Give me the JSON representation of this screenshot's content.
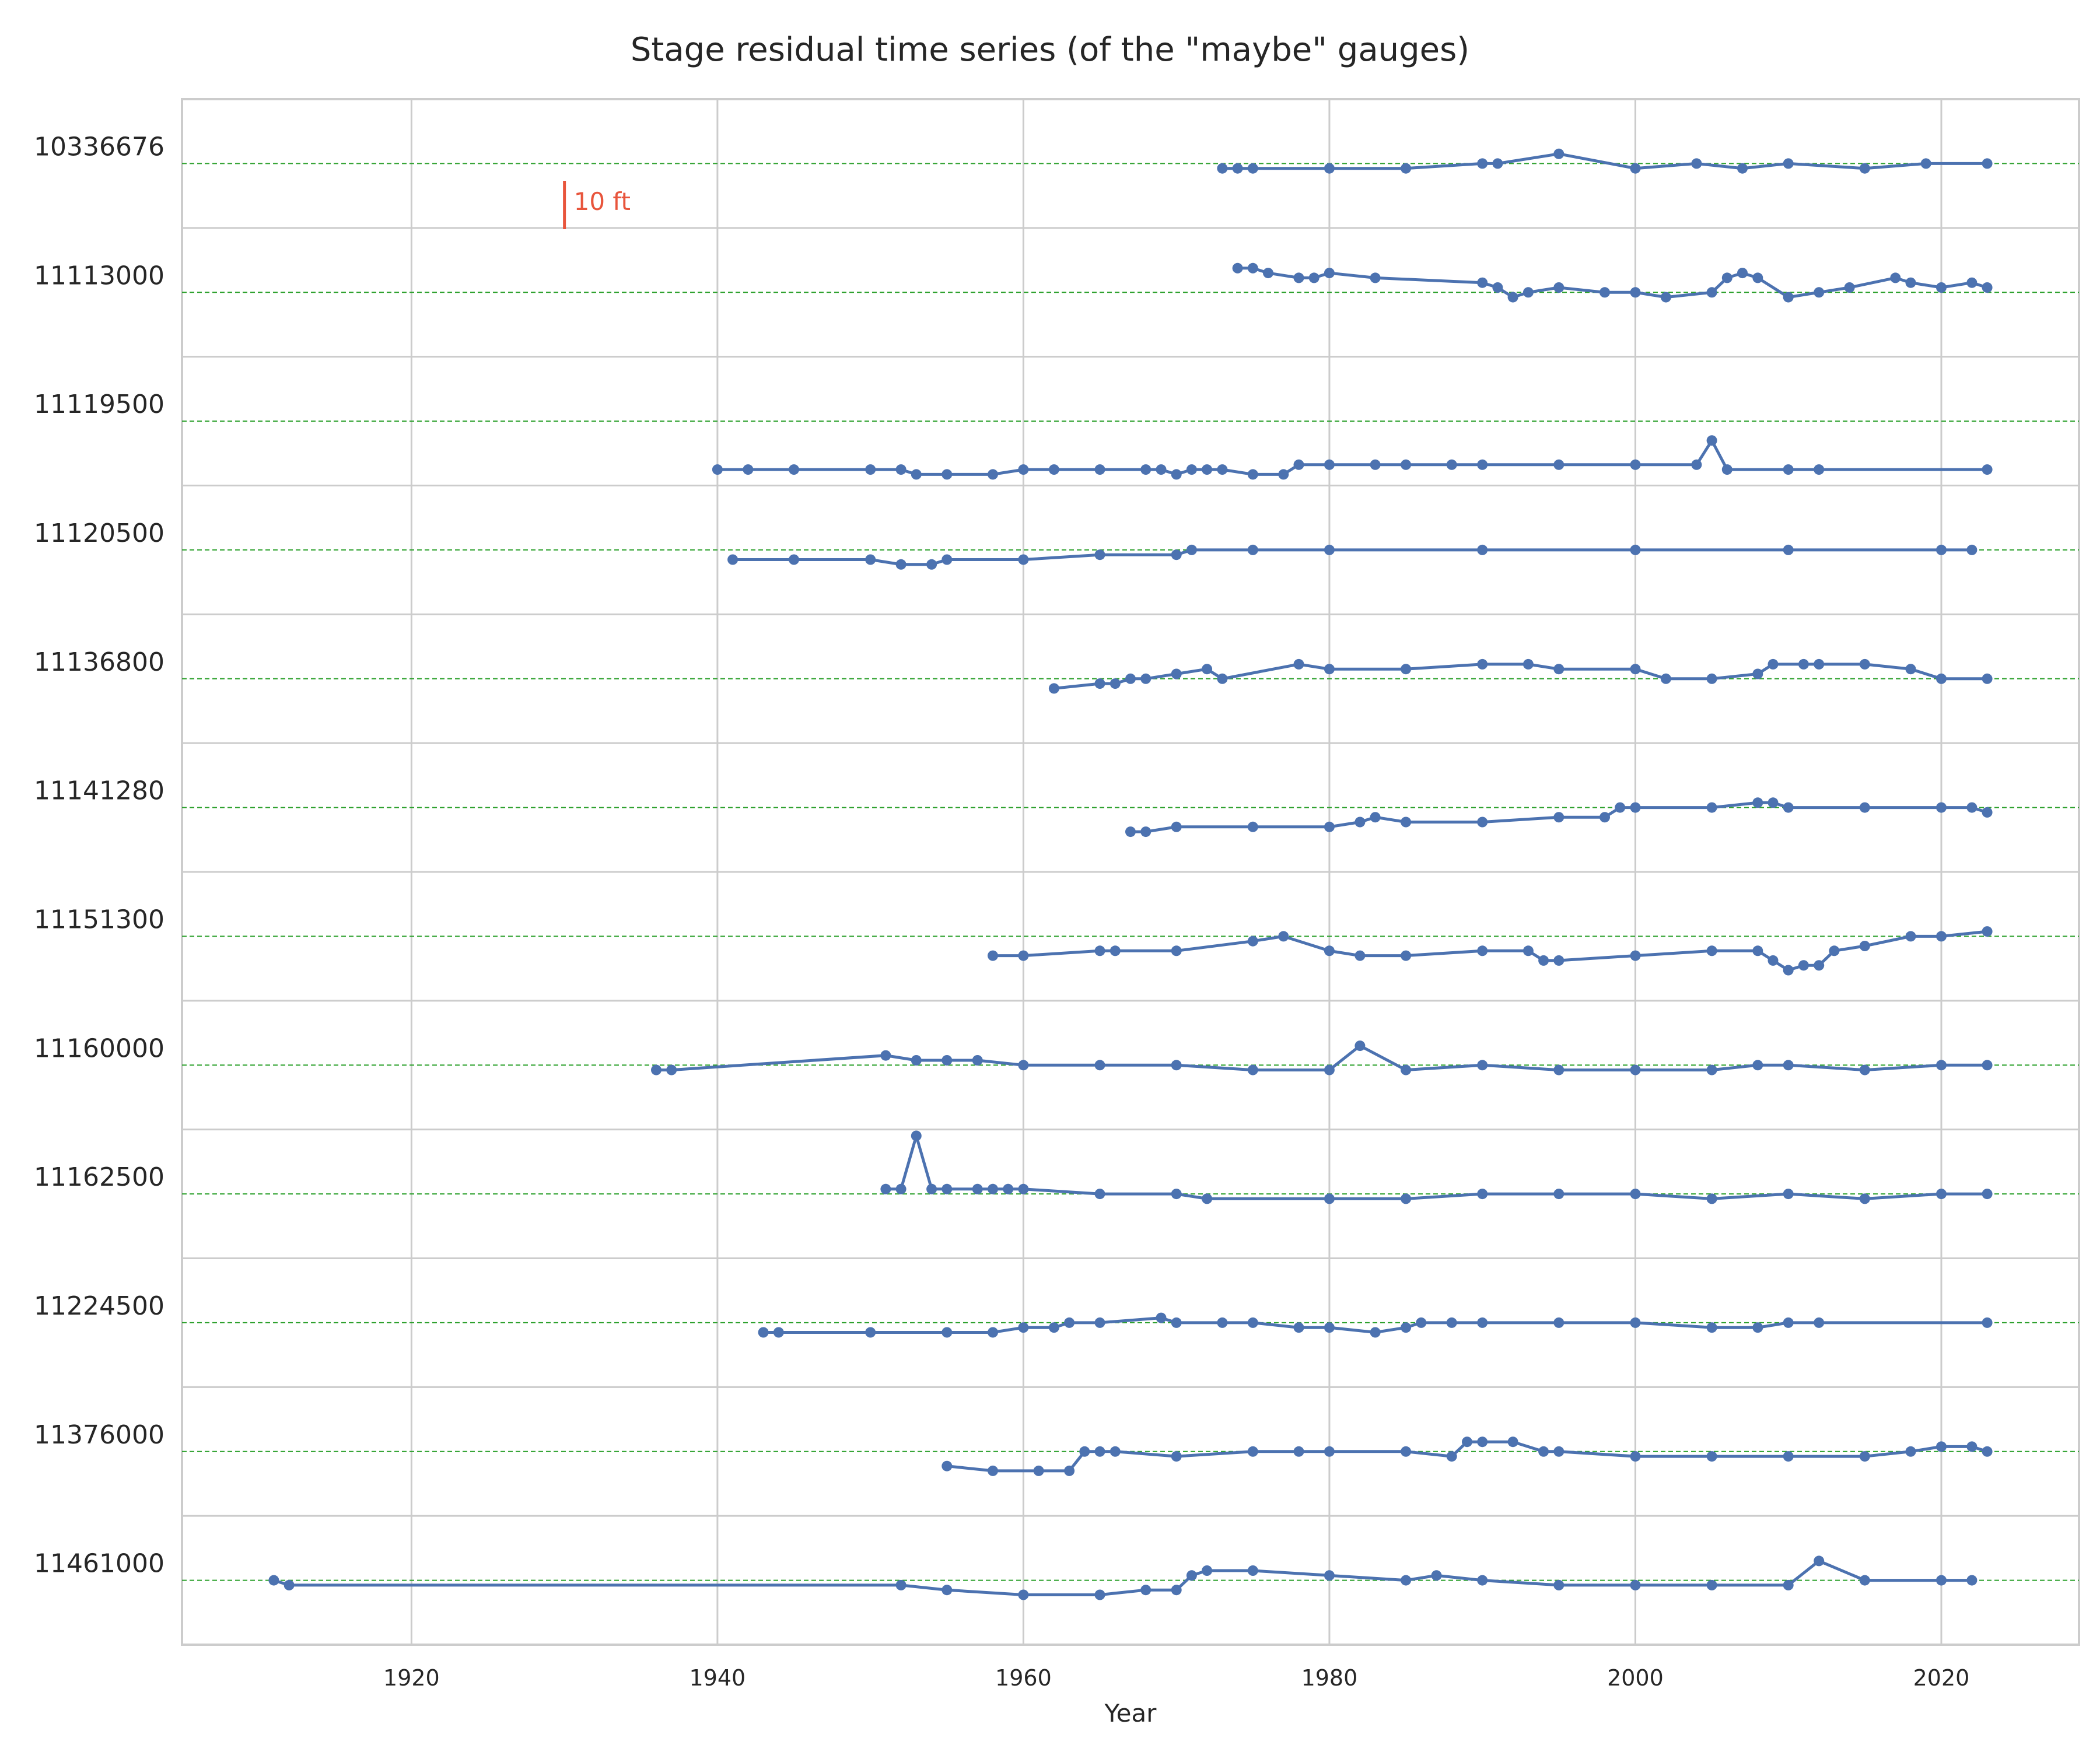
{
  "chart_data": {
    "type": "line",
    "title": "Stage residual time series (of the \"maybe\" gauges)",
    "xlabel": "Year",
    "ylabel": "",
    "xlim": [
      1905,
      2029
    ],
    "xticks": [
      1920,
      1940,
      1960,
      1980,
      2000,
      2020
    ],
    "grid": true,
    "zero_reference": {
      "style": "dashed",
      "color": "#2ca02c"
    },
    "scale_bar": {
      "label": "10 ft",
      "value_ft": 10,
      "x": 1930,
      "color": "#e8553c"
    },
    "series_color": "#4c72b0",
    "series": [
      {
        "name": "10336676",
        "x": [
          1973,
          1974,
          1975,
          1980,
          1985,
          1990,
          1991,
          1995,
          2000,
          2004,
          2007,
          2010,
          2015,
          2019,
          2023
        ],
        "y": [
          -1,
          -1,
          -1,
          -1,
          -1,
          0,
          0,
          2,
          -1,
          0,
          -1,
          0,
          -1,
          0,
          0
        ]
      },
      {
        "name": "11113000",
        "x": [
          1974,
          1975,
          1976,
          1978,
          1979,
          1980,
          1983,
          1990,
          1991,
          1992,
          1993,
          1995,
          1998,
          2000,
          2002,
          2005,
          2006,
          2007,
          2008,
          2010,
          2012,
          2014,
          2017,
          2018,
          2020,
          2022,
          2023
        ],
        "y": [
          5,
          5,
          4,
          3,
          3,
          4,
          3,
          2,
          1,
          -1,
          0,
          1,
          0,
          0,
          -1,
          0,
          3,
          4,
          3,
          -1,
          0,
          1,
          3,
          2,
          1,
          2,
          1
        ]
      },
      {
        "name": "11119500",
        "x": [
          1940,
          1942,
          1945,
          1950,
          1952,
          1953,
          1955,
          1958,
          1960,
          1962,
          1965,
          1968,
          1969,
          1970,
          1971,
          1972,
          1973,
          1975,
          1977,
          1978,
          1980,
          1983,
          1985,
          1988,
          1990,
          1995,
          2000,
          2004,
          2005,
          2006,
          2010,
          2012,
          2023
        ],
        "y": [
          -10,
          -10,
          -10,
          -10,
          -10,
          -11,
          -11,
          -11,
          -10,
          -10,
          -10,
          -10,
          -10,
          -11,
          -10,
          -10,
          -10,
          -11,
          -11,
          -9,
          -9,
          -9,
          -9,
          -9,
          -9,
          -9,
          -9,
          -9,
          -4,
          -10,
          -10,
          -10,
          -10
        ]
      },
      {
        "name": "11120500",
        "x": [
          1941,
          1945,
          1950,
          1952,
          1954,
          1955,
          1960,
          1965,
          1970,
          1971,
          1975,
          1980,
          1990,
          2000,
          2010,
          2020,
          2022
        ],
        "y": [
          -2,
          -2,
          -2,
          -3,
          -3,
          -2,
          -2,
          -1,
          -1,
          0,
          0,
          0,
          0,
          0,
          0,
          0,
          0
        ]
      },
      {
        "name": "11136800",
        "x": [
          1962,
          1965,
          1966,
          1967,
          1968,
          1970,
          1972,
          1973,
          1978,
          1980,
          1985,
          1990,
          1993,
          1995,
          2000,
          2002,
          2005,
          2008,
          2009,
          2011,
          2012,
          2015,
          2018,
          2020,
          2023
        ],
        "y": [
          -2,
          -1,
          -1,
          0,
          0,
          1,
          2,
          0,
          3,
          2,
          2,
          3,
          3,
          2,
          2,
          0,
          0,
          1,
          3,
          3,
          3,
          3,
          2,
          0,
          0
        ]
      },
      {
        "name": "11141280",
        "x": [
          1967,
          1968,
          1970,
          1975,
          1980,
          1982,
          1983,
          1985,
          1990,
          1995,
          1998,
          1999,
          2000,
          2005,
          2008,
          2009,
          2010,
          2015,
          2020,
          2022,
          2023
        ],
        "y": [
          -5,
          -5,
          -4,
          -4,
          -4,
          -3,
          -2,
          -3,
          -3,
          -2,
          -2,
          0,
          0,
          0,
          1,
          1,
          0,
          0,
          0,
          0,
          -1
        ]
      },
      {
        "name": "11151300",
        "x": [
          1958,
          1960,
          1965,
          1966,
          1970,
          1975,
          1977,
          1980,
          1982,
          1985,
          1990,
          1993,
          1994,
          1995,
          2000,
          2005,
          2008,
          2009,
          2010,
          2011,
          2012,
          2013,
          2015,
          2018,
          2020,
          2023
        ],
        "y": [
          -4,
          -4,
          -3,
          -3,
          -3,
          -1,
          0,
          -3,
          -4,
          -4,
          -3,
          -3,
          -5,
          -5,
          -4,
          -3,
          -3,
          -5,
          -7,
          -6,
          -6,
          -3,
          -2,
          0,
          0,
          1
        ]
      },
      {
        "name": "11160000",
        "x": [
          1936,
          1937,
          1951,
          1953,
          1955,
          1957,
          1960,
          1965,
          1970,
          1975,
          1980,
          1982,
          1985,
          1990,
          1995,
          2000,
          2005,
          2008,
          2010,
          2015,
          2020,
          2023
        ],
        "y": [
          -1,
          -1,
          2,
          1,
          1,
          1,
          0,
          0,
          0,
          -1,
          -1,
          4,
          -1,
          0,
          -1,
          -1,
          -1,
          0,
          0,
          -1,
          0,
          0
        ]
      },
      {
        "name": "11162500",
        "x": [
          1951,
          1952,
          1953,
          1954,
          1955,
          1957,
          1958,
          1959,
          1960,
          1965,
          1970,
          1972,
          1980,
          1985,
          1990,
          1995,
          2000,
          2005,
          2010,
          2015,
          2020,
          2023
        ],
        "y": [
          1,
          1,
          12,
          1,
          1,
          1,
          1,
          1,
          1,
          0,
          0,
          -1,
          -1,
          -1,
          0,
          0,
          0,
          -1,
          0,
          -1,
          0,
          0
        ]
      },
      {
        "name": "11224500",
        "x": [
          1943,
          1944,
          1950,
          1955,
          1958,
          1960,
          1962,
          1963,
          1965,
          1969,
          1970,
          1973,
          1975,
          1978,
          1980,
          1983,
          1985,
          1986,
          1988,
          1990,
          1995,
          2000,
          2005,
          2008,
          2010,
          2012,
          2023
        ],
        "y": [
          -2,
          -2,
          -2,
          -2,
          -2,
          -1,
          -1,
          0,
          0,
          1,
          0,
          0,
          0,
          -1,
          -1,
          -2,
          -1,
          0,
          0,
          0,
          0,
          0,
          -1,
          -1,
          0,
          0,
          0
        ]
      },
      {
        "name": "11376000",
        "x": [
          1955,
          1958,
          1961,
          1963,
          1964,
          1965,
          1966,
          1970,
          1975,
          1978,
          1980,
          1985,
          1988,
          1989,
          1990,
          1992,
          1994,
          1995,
          2000,
          2005,
          2010,
          2015,
          2018,
          2020,
          2022,
          2023
        ],
        "y": [
          -3,
          -4,
          -4,
          -4,
          0,
          0,
          0,
          -1,
          0,
          0,
          0,
          0,
          -1,
          2,
          2,
          2,
          0,
          0,
          -1,
          -1,
          -1,
          -1,
          0,
          1,
          1,
          0
        ]
      },
      {
        "name": "11461000",
        "x": [
          1911,
          1912,
          1952,
          1955,
          1960,
          1965,
          1968,
          1970,
          1971,
          1972,
          1975,
          1980,
          1985,
          1987,
          1990,
          1995,
          2000,
          2005,
          2010,
          2012,
          2015,
          2020,
          2022
        ],
        "y": [
          0,
          -1,
          -1,
          -2,
          -3,
          -3,
          -2,
          -2,
          1,
          2,
          2,
          1,
          0,
          1,
          0,
          -1,
          -1,
          -1,
          -1,
          4,
          0,
          0,
          0
        ]
      }
    ]
  }
}
